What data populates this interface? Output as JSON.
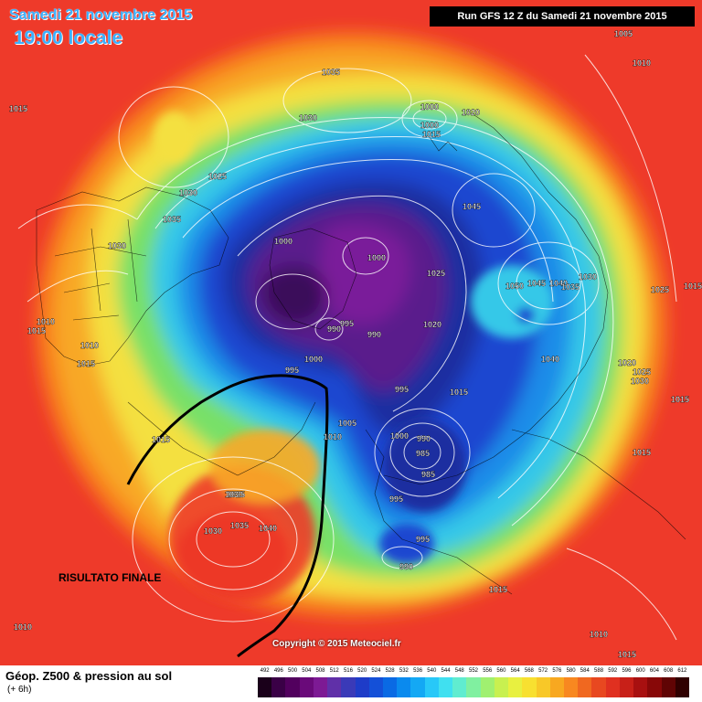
{
  "header": {
    "date": "Samedi 21 novembre 2015",
    "local_time": "19:00 locale",
    "run_info": "Run GFS 12 Z du Samedi 21 novembre 2015"
  },
  "annotation": {
    "result_label": "RISULTATO FINALE"
  },
  "copyright": "Copyright © 2015 Meteociel.fr",
  "legend": {
    "title": "Géop. Z500 & pression au sol",
    "subtitle": "(+ 6h)",
    "scale_values": [
      "492",
      "496",
      "500",
      "504",
      "508",
      "512",
      "516",
      "520",
      "524",
      "528",
      "532",
      "536",
      "540",
      "544",
      "548",
      "552",
      "556",
      "560",
      "564",
      "568",
      "572",
      "576",
      "580",
      "584",
      "588",
      "592",
      "596",
      "600",
      "604",
      "608",
      "612"
    ],
    "scale_colors": [
      "#1a001a",
      "#3a0046",
      "#52005e",
      "#6a0a7a",
      "#7d1a94",
      "#6030a8",
      "#3a3ab8",
      "#1e3cc8",
      "#1450d8",
      "#0a6ae4",
      "#0a8aee",
      "#14a8f4",
      "#28c8f8",
      "#40e0f0",
      "#60ecd0",
      "#80f0a0",
      "#a0f070",
      "#c8f050",
      "#e8f040",
      "#f8e030",
      "#f8c828",
      "#f8a820",
      "#f88820",
      "#f06820",
      "#e84820",
      "#e03020",
      "#c82018",
      "#a81010",
      "#880808",
      "#600404",
      "#300000"
    ]
  },
  "map": {
    "colors": {
      "outer": "#ee3a2a",
      "orange": "#f8801e",
      "light_orange": "#f8a828",
      "yellow": "#f4e040",
      "green": "#78e068",
      "cyan": "#34c8e8",
      "light_blue": "#1e8ce8",
      "blue": "#1c46d0",
      "deep_blue": "#1a2ea0",
      "purple": "#5a1e8c",
      "dark_purple": "#3a0e5a",
      "magenta": "#7a1e9a"
    },
    "pressure_labels": [
      {
        "text": "1005"
      },
      {
        "text": "1010"
      },
      {
        "text": "1015"
      },
      {
        "text": "1035"
      },
      {
        "text": "1030"
      },
      {
        "text": "1000"
      },
      {
        "text": "1000"
      },
      {
        "text": "1015"
      },
      {
        "text": "1020"
      },
      {
        "text": "1010"
      },
      {
        "text": "1025"
      },
      {
        "text": "1030"
      },
      {
        "text": "1035"
      },
      {
        "text": "1030"
      },
      {
        "text": "1015"
      },
      {
        "text": "1010"
      },
      {
        "text": "1015"
      },
      {
        "text": "1045"
      },
      {
        "text": "1000"
      },
      {
        "text": "1000"
      },
      {
        "text": "1025"
      },
      {
        "text": "1050"
      },
      {
        "text": "1045"
      },
      {
        "text": "1040"
      },
      {
        "text": "1035"
      },
      {
        "text": "1030"
      },
      {
        "text": "1025"
      },
      {
        "text": "1015"
      },
      {
        "text": "995"
      },
      {
        "text": "990"
      },
      {
        "text": "990"
      },
      {
        "text": "1020"
      },
      {
        "text": "1000"
      },
      {
        "text": "1040"
      },
      {
        "text": "995"
      },
      {
        "text": "1020"
      },
      {
        "text": "1025"
      },
      {
        "text": "1030"
      },
      {
        "text": "1015"
      },
      {
        "text": "995"
      },
      {
        "text": "1015"
      },
      {
        "text": "1005"
      },
      {
        "text": "1000"
      },
      {
        "text": "990"
      },
      {
        "text": "985"
      },
      {
        "text": "1015"
      },
      {
        "text": "1015"
      },
      {
        "text": "1010"
      },
      {
        "text": "985"
      },
      {
        "text": "1025"
      },
      {
        "text": "995"
      },
      {
        "text": "1030"
      },
      {
        "text": "1035"
      },
      {
        "text": "1040"
      },
      {
        "text": "995"
      },
      {
        "text": "990"
      },
      {
        "text": "1015"
      },
      {
        "text": "1010"
      },
      {
        "text": "1010"
      },
      {
        "text": "1015"
      },
      {
        "text": "1030"
      }
    ]
  }
}
